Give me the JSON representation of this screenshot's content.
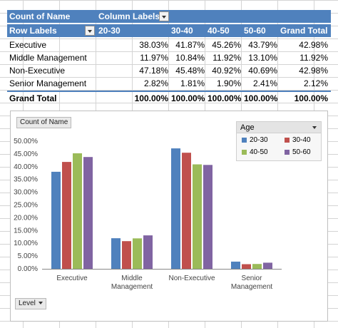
{
  "pivot": {
    "header1": {
      "count_label": "Count of Name",
      "column_labels": "Column Labels"
    },
    "header2": {
      "row_labels": "Row Labels",
      "columns": [
        "20-30",
        "30-40",
        "40-50",
        "50-60",
        "Grand Total"
      ]
    },
    "rows": [
      {
        "label": "Executive",
        "values": [
          "38.03%",
          "41.87%",
          "45.26%",
          "43.79%",
          "42.98%"
        ]
      },
      {
        "label": "Middle Management",
        "values": [
          "11.97%",
          "10.84%",
          "11.92%",
          "13.10%",
          "11.92%"
        ]
      },
      {
        "label": "Non-Executive",
        "values": [
          "47.18%",
          "45.48%",
          "40.92%",
          "40.69%",
          "42.98%"
        ]
      },
      {
        "label": "Senior Management",
        "values": [
          "2.82%",
          "1.81%",
          "1.90%",
          "2.41%",
          "2.12%"
        ]
      }
    ],
    "total": {
      "label": "Grand Total",
      "values": [
        "100.00%",
        "100.00%",
        "100.00%",
        "100.00%",
        "100.00%"
      ]
    }
  },
  "chart_buttons": {
    "value_field": "Count of Name",
    "axis_field": "Level"
  },
  "chart_data": {
    "type": "bar",
    "categories": [
      "Executive",
      "Middle Management",
      "Non-Executive",
      "Senior Management"
    ],
    "category_lines": [
      [
        "Executive"
      ],
      [
        "Middle",
        "Management"
      ],
      [
        "Non-Executive"
      ],
      [
        "Senior",
        "Management"
      ]
    ],
    "series": [
      {
        "name": "20-30",
        "color": "#4f81bd",
        "values": [
          38.03,
          11.97,
          47.18,
          2.82
        ]
      },
      {
        "name": "30-40",
        "color": "#c0504d",
        "values": [
          41.87,
          10.84,
          45.48,
          1.81
        ]
      },
      {
        "name": "40-50",
        "color": "#9bbb59",
        "values": [
          45.26,
          11.92,
          40.92,
          1.9
        ]
      },
      {
        "name": "50-60",
        "color": "#8064a2",
        "values": [
          43.79,
          13.1,
          40.69,
          2.41
        ]
      }
    ],
    "ylim": [
      0,
      50
    ],
    "yticks": [
      "0.00%",
      "5.00%",
      "10.00%",
      "15.00%",
      "20.00%",
      "25.00%",
      "30.00%",
      "35.00%",
      "40.00%",
      "45.00%",
      "50.00%"
    ],
    "legend_title": "Age",
    "legend_position": "top-right",
    "grid": false
  }
}
